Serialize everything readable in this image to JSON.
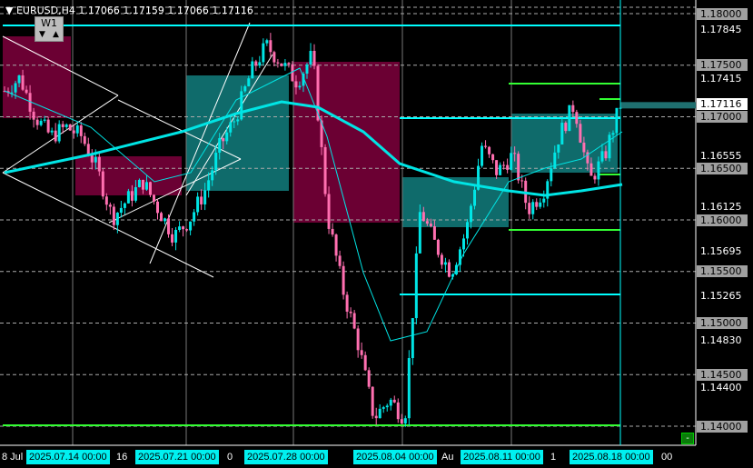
{
  "header": {
    "symbol": "EURUSD,H4",
    "open": "1.17066",
    "high": "1.17159",
    "low": "1.17066",
    "close": "1.17116"
  },
  "period_button": {
    "label": "W1",
    "down": "▼",
    "up": "▲"
  },
  "price_axis": {
    "boxed": [
      "1.18000",
      "1.17500",
      "1.17000",
      "1.16500",
      "1.16000",
      "1.15500",
      "1.15000",
      "1.14500",
      "1.14000"
    ],
    "plain": [
      "1.17845",
      "1.17415",
      "1.16555",
      "1.16125",
      "1.15695",
      "1.15265",
      "1.14830",
      "1.14400"
    ],
    "current": "1.17116"
  },
  "time_axis": {
    "labels": [
      "2025.07.14 00:00",
      "2025.07.21 00:00",
      "2025.07.28 00:00",
      "2025.08.04 00:00",
      "2025.08.11 00:00",
      "2025.08.18 00:00"
    ],
    "partial": [
      "8 Jul",
      "16",
      "0",
      "Au",
      "1",
      "00"
    ]
  },
  "minimize_button": "-",
  "colors": {
    "bull": "#00e5e5",
    "bear": "#ff6fb0",
    "ma": "#00e5e5",
    "bear_zone": "#6b0033",
    "bull_zone": "#0f6b6b",
    "level_green": "#33ff33",
    "level_cyan": "#00ffff"
  },
  "price_path": [
    1.1725,
    1.1738,
    1.17,
    1.1681,
    1.169,
    1.1681,
    1.165,
    1.1602,
    1.162,
    1.1637,
    1.161,
    1.1584,
    1.16,
    1.1628,
    1.1672,
    1.1699,
    1.1743,
    1.1769,
    1.1752,
    1.1734,
    1.176,
    1.1602,
    1.1531,
    1.1478,
    1.1408,
    1.1426,
    1.1408,
    1.161,
    1.1575,
    1.1549,
    1.159,
    1.1672,
    1.1646,
    1.1663,
    1.161,
    1.1628,
    1.1681,
    1.1712,
    1.1637,
    1.1663,
    1.1712
  ]
}
